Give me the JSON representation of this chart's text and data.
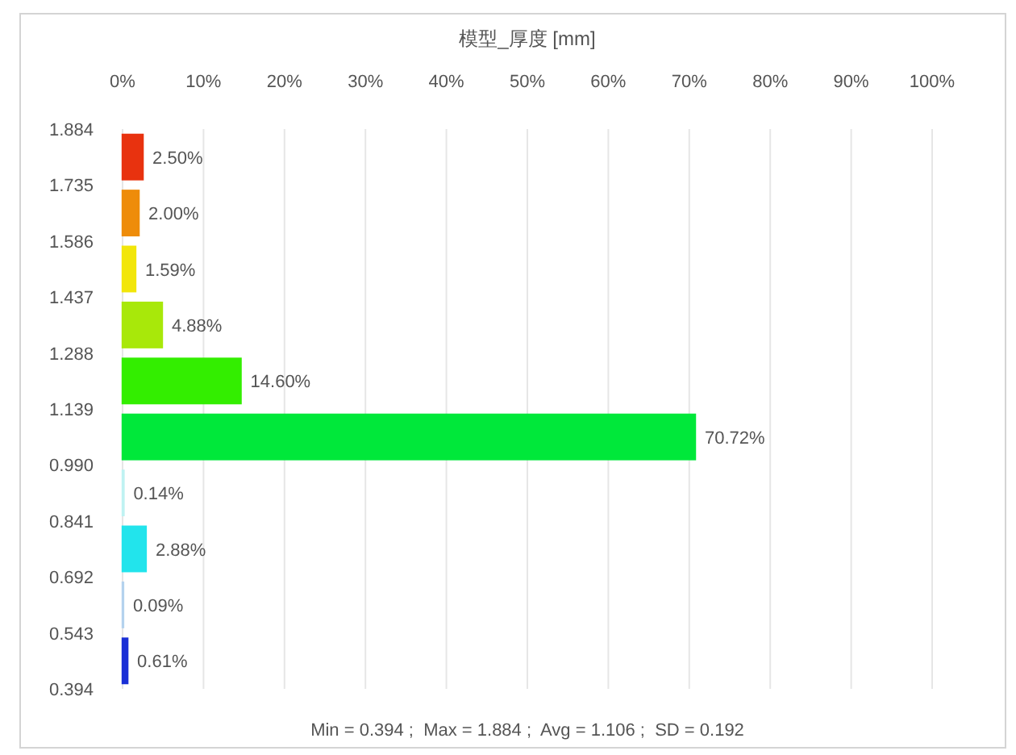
{
  "chart_data": {
    "type": "histogram",
    "orientation": "horizontal",
    "title": "模型_厚度 [mm]",
    "bins": [
      0.394,
      0.543,
      0.692,
      0.841,
      0.99,
      1.139,
      1.288,
      1.437,
      1.586,
      1.735,
      1.884
    ],
    "values": [
      0.61,
      0.09,
      2.88,
      0.14,
      70.72,
      14.6,
      4.88,
      1.59,
      2.0,
      2.5
    ],
    "value_labels": [
      "0.61%",
      "0.09%",
      "2.88%",
      "0.14%",
      "70.72%",
      "14.60%",
      "4.88%",
      "1.59%",
      "2.00%",
      "2.50%"
    ],
    "colors": [
      "#1a2fd6",
      "#b4d2ee",
      "#22e4ec",
      "#bff2f2",
      "#00e83a",
      "#33ee00",
      "#a8e80a",
      "#f2e60a",
      "#ee8c0a",
      "#e8320f"
    ],
    "xlim": [
      0,
      100
    ],
    "xticks": [
      {
        "value": 0,
        "label": "0%"
      },
      {
        "value": 10,
        "label": "10%"
      },
      {
        "value": 20,
        "label": "20%"
      },
      {
        "value": 30,
        "label": "30%"
      },
      {
        "value": 40,
        "label": "40%"
      },
      {
        "value": 50,
        "label": "50%"
      },
      {
        "value": 60,
        "label": "60%"
      },
      {
        "value": 70,
        "label": "70%"
      },
      {
        "value": 80,
        "label": "80%"
      },
      {
        "value": 90,
        "label": "90%"
      },
      {
        "value": 100,
        "label": "100%"
      }
    ],
    "ylim": [
      0.394,
      1.884
    ],
    "yticks": [
      0.394,
      0.543,
      0.692,
      0.841,
      {
        "value": 0.99,
        "label": "0.990"
      },
      1.139,
      1.288,
      1.437,
      1.586,
      1.735,
      1.884
    ],
    "grid": "x",
    "annotations": [
      "Min = 0.394 ;  Max = 1.884 ;  Avg = 1.106 ;  SD = 0.192"
    ]
  }
}
